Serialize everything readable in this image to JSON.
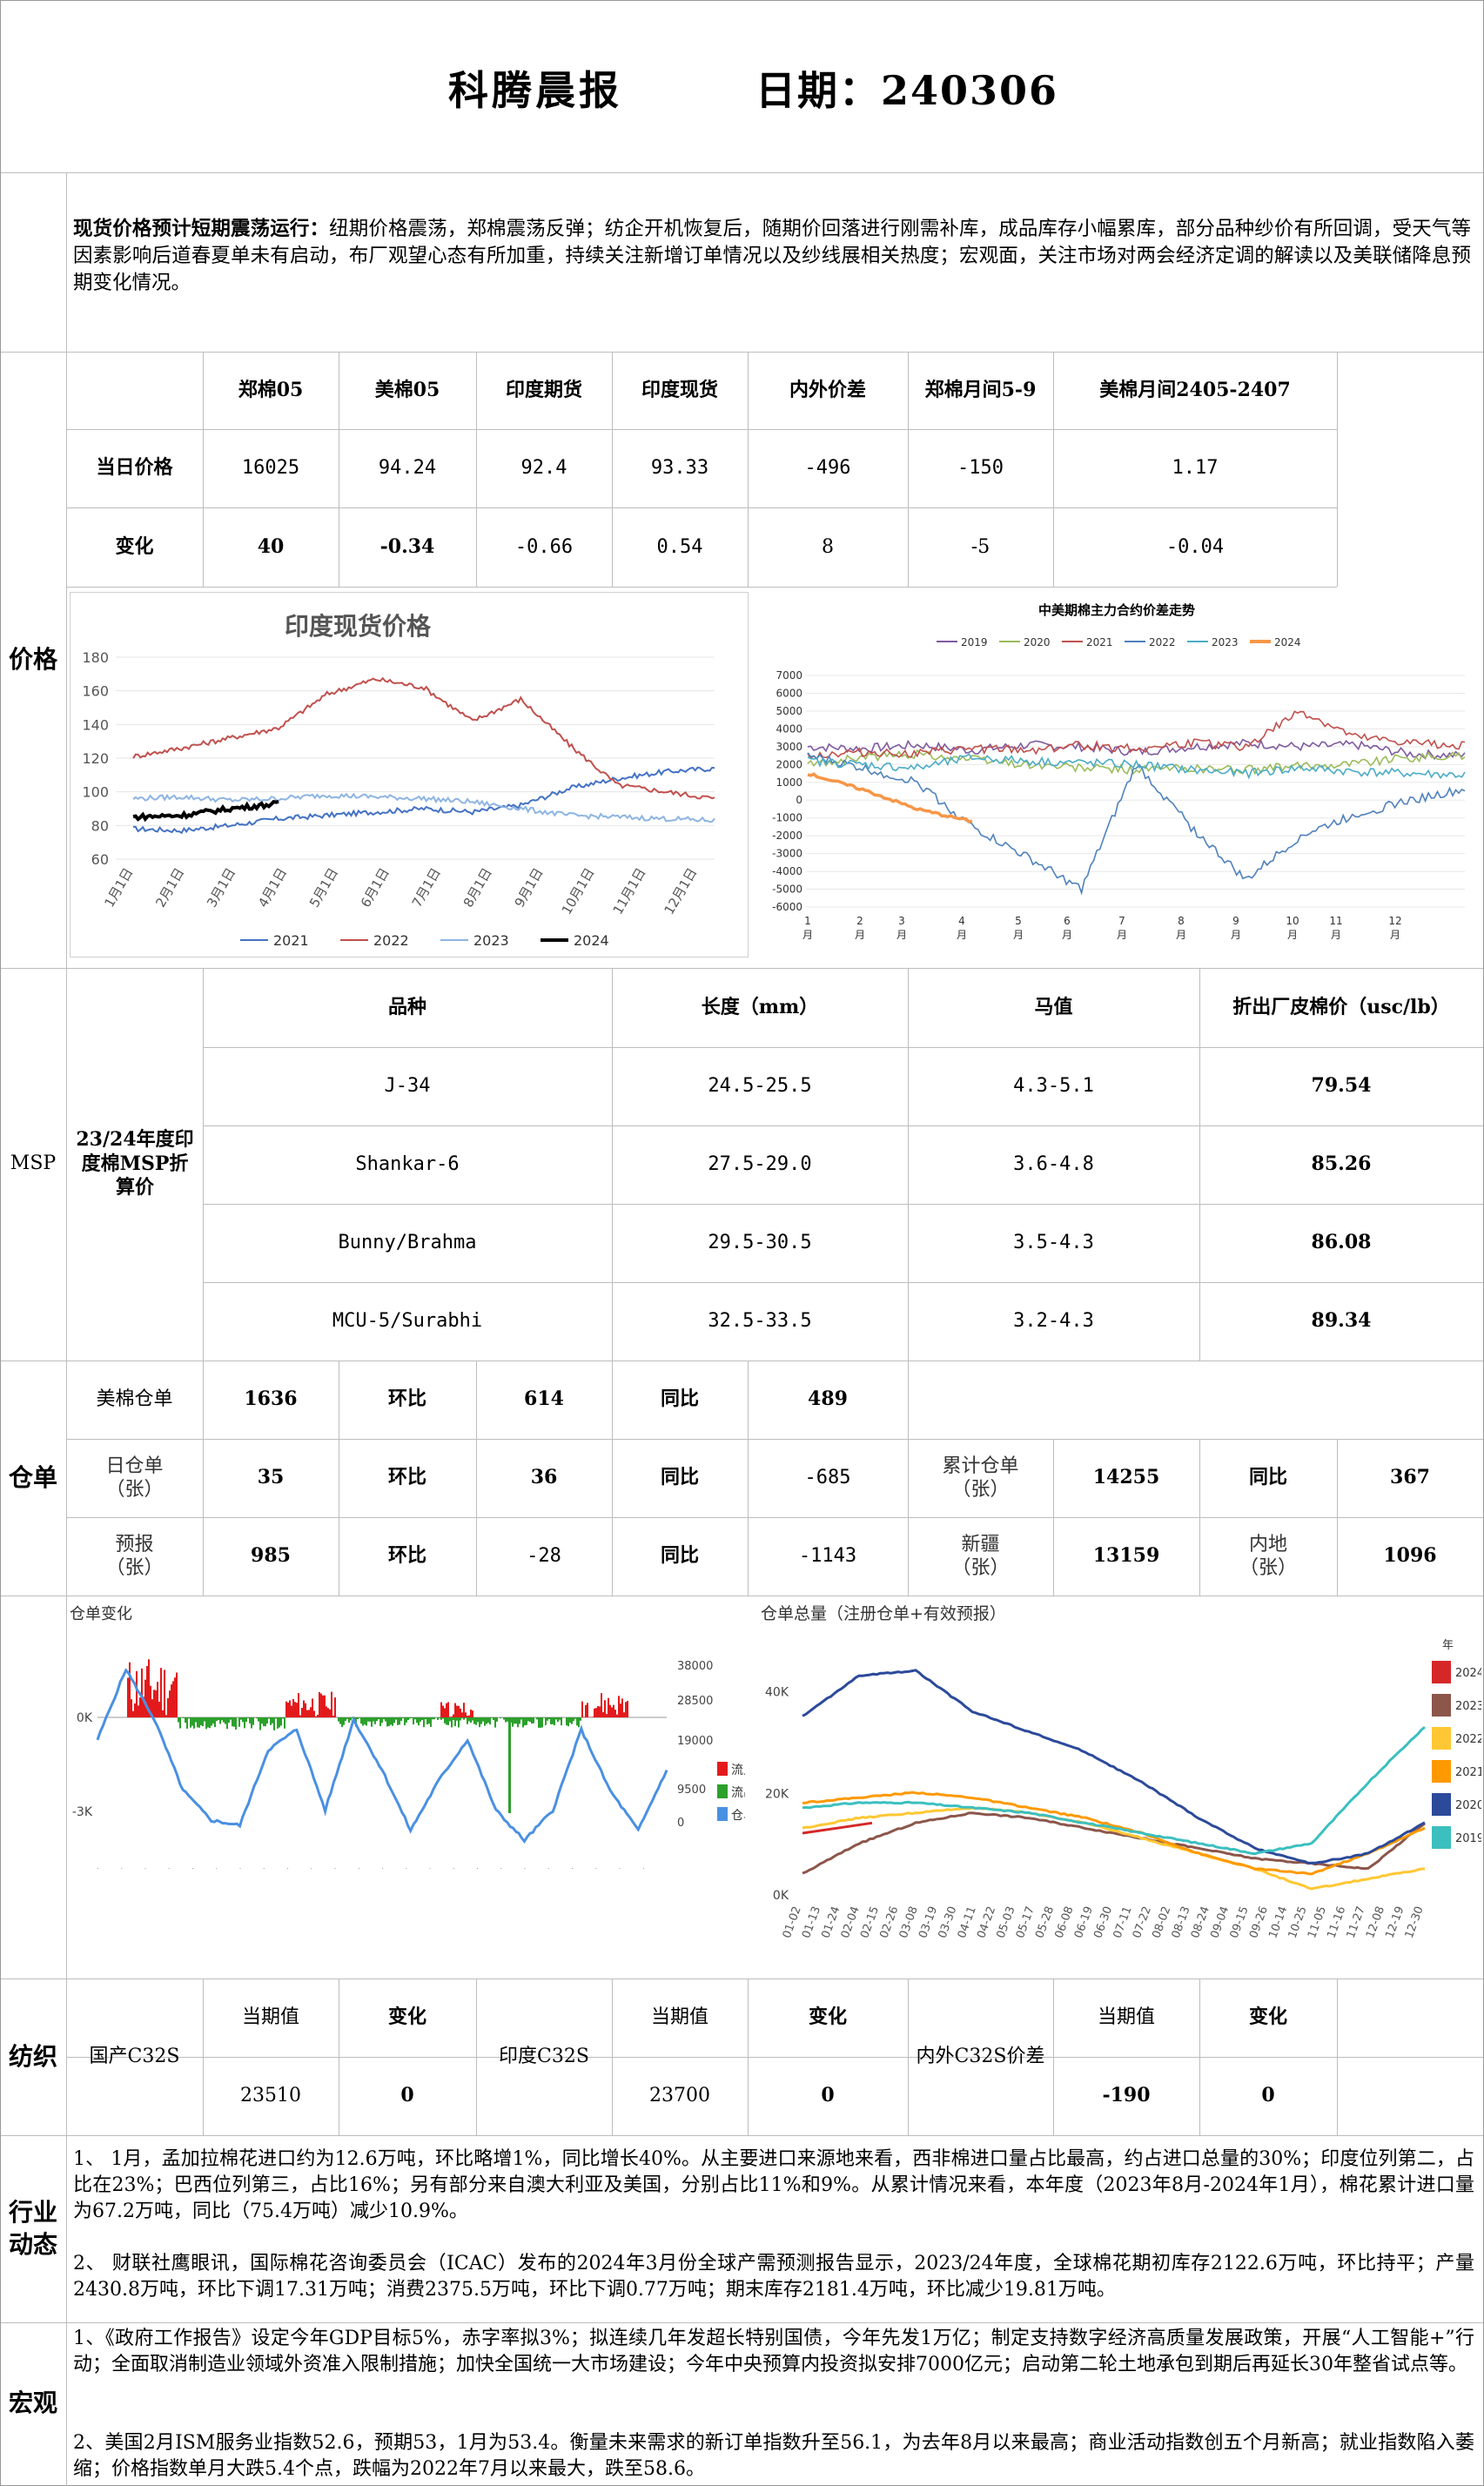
{
  "header": {
    "title": "科腾晨报",
    "date_label": "日期：240306"
  },
  "summary": {
    "lead": "现货价格预计短期震荡运行：",
    "body": "纽期价格震荡，郑棉震荡反弹；纺企开机恢复后，随期价回落进行刚需补库，成品库存小幅累库，部分品种纱价有所回调，受天气等因素影响后道春夏单未有启动，布厂观望心态有所加重，持续关注新增订单情况以及纱线展相关热度；宏观面，关注市场对两会经济定调的解读以及美联储降息预期变化情况。"
  },
  "price": {
    "section": "价格",
    "headers": [
      "郑棉05",
      "美棉05",
      "印度期货",
      "印度现货",
      "内外价差",
      "郑棉月间5-9",
      "美棉月间2405-2407"
    ],
    "row1_label": "当日价格",
    "row1": [
      "16025",
      "94.24",
      "92.4",
      "93.33",
      "-496",
      "-150",
      "1.17"
    ],
    "row2_label": "变化",
    "row2": [
      "40",
      "-0.34",
      "-0.66",
      "0.54",
      "8",
      "-5",
      "-0.04"
    ]
  },
  "india_chart": {
    "chart_data": {
      "type": "line",
      "title": "印度现货价格",
      "x_ticks": [
        "1月1日",
        "2月1日",
        "3月1日",
        "4月1日",
        "5月1日",
        "6月1日",
        "7月1日",
        "8月1日",
        "9月1日",
        "10月1日",
        "11月1日",
        "12月1日"
      ],
      "ylim": [
        60,
        180
      ],
      "y_ticks": [
        "60",
        "80",
        "100",
        "120",
        "140",
        "160",
        "180"
      ],
      "legend_position": "bottom",
      "series": [
        {
          "name": "2021",
          "color": "#4472c4",
          "values": [
            78,
            77,
            80,
            84,
            86,
            88,
            90,
            88,
            92,
            102,
            108,
            112,
            114
          ]
        },
        {
          "name": "2022",
          "color": "#c0504d",
          "values": [
            121,
            126,
            132,
            138,
            158,
            167,
            162,
            142,
            155,
            128,
            104,
            100,
            96
          ]
        },
        {
          "name": "2023",
          "color": "#8db4e2",
          "values": [
            96,
            97,
            95,
            96,
            98,
            97,
            96,
            94,
            90,
            86,
            85,
            84,
            83
          ]
        },
        {
          "name": "2024",
          "color": "#000000",
          "values": [
            85,
            86,
            90,
            93
          ]
        }
      ]
    }
  },
  "spread_chart": {
    "chart_data": {
      "type": "line",
      "title": "中美期棉主力合约价差走势",
      "x_ticks": [
        "1\n月",
        "2\n月",
        "3\n月",
        "4\n月",
        "5\n月",
        "6\n月",
        "7\n月",
        "8\n月",
        "9\n月",
        "10\n月",
        "11\n月",
        "12\n月"
      ],
      "ylim": [
        -6000,
        7000
      ],
      "y_ticks": [
        "7000",
        "6000",
        "5000",
        "4000",
        "3000",
        "2000",
        "1000",
        "0",
        "-1000",
        "-2000",
        "-3000",
        "-4000",
        "-5000",
        "-6000"
      ],
      "legend_position": "top",
      "series": [
        {
          "name": "2019",
          "color": "#7f5aa0",
          "values": [
            3000,
            2900,
            3100,
            2800,
            3100,
            3000,
            2700,
            3000,
            3200,
            3000,
            3100,
            2600,
            2500
          ]
        },
        {
          "name": "2020",
          "color": "#9bbb59",
          "values": [
            2000,
            2400,
            2600,
            2300,
            2000,
            1800,
            1700,
            1800,
            1700,
            1900,
            2100,
            2400,
            2500
          ]
        },
        {
          "name": "2021",
          "color": "#c0504d",
          "values": [
            2500,
            2700,
            2600,
            2900,
            2800,
            3100,
            2900,
            3200,
            3000,
            5000,
            3500,
            3200,
            3100
          ]
        },
        {
          "name": "2022",
          "color": "#4f81bd",
          "values": [
            2500,
            1800,
            1000,
            -1500,
            -3200,
            -5000,
            2000,
            -1500,
            -4500,
            -2000,
            -800,
            0,
            600
          ]
        },
        {
          "name": "2023",
          "color": "#4bacc6",
          "values": [
            2200,
            2000,
            1800,
            2400,
            2200,
            2100,
            2000,
            1700,
            1500,
            1800,
            1600,
            1500,
            1400
          ]
        },
        {
          "name": "2024",
          "color": "#f79646",
          "values": [
            1500,
            600,
            -500,
            -1200
          ]
        }
      ]
    }
  },
  "msp": {
    "section": "MSP",
    "title": "23/24年度印度棉MSP折算价",
    "headers": [
      "品种",
      "长度（mm）",
      "马值",
      "折出厂皮棉价（usc/lb）"
    ],
    "rows": [
      [
        "J-34",
        "24.5-25.5",
        "4.3-5.1",
        "79.54"
      ],
      [
        "Shankar-6",
        "27.5-29.0",
        "3.6-4.8",
        "85.26"
      ],
      [
        "Bunny/Brahma",
        "29.5-30.5",
        "3.5-4.3",
        "86.08"
      ],
      [
        "MCU-5/Surabhi",
        "32.5-33.5",
        "3.2-4.3",
        "89.34"
      ]
    ]
  },
  "warehouse": {
    "section": "仓单",
    "us_label": "美棉仓单",
    "us_value": "1636",
    "us_hb_label": "环比",
    "us_hb": "614",
    "us_tb_label": "同比",
    "us_tb": "489",
    "day_label": "日仓单\n（张）",
    "day_value": "35",
    "day_hb_label": "环比",
    "day_hb": "36",
    "day_tb_label": "同比",
    "day_tb": "-685",
    "cum_label": "累计仓单\n（张）",
    "cum_value": "14255",
    "cum_tb_label": "同比",
    "cum_tb": "367",
    "fc_label": "预报\n（张）",
    "fc_value": "985",
    "fc_hb_label": "环比",
    "fc_hb": "-28",
    "fc_tb_label": "同比",
    "fc_tb": "-1143",
    "xj_label": "新疆\n（张）",
    "xj_value": "13159",
    "nd_label": "内地\n（张）",
    "nd_value": "1096"
  },
  "wr_change_chart": {
    "chart_data": {
      "type": "bar",
      "title": "仓单变化",
      "y_left_ticks": [
        "0K",
        "-3K"
      ],
      "y_right_ticks": [
        "38000",
        "28500",
        "19000",
        "9500",
        "0"
      ],
      "legend": [
        {
          "name": "流入",
          "color": "#e31a1c"
        },
        {
          "name": "流出",
          "color": "#2ca02c"
        },
        {
          "name": "仓单",
          "color": "#4a90e2"
        }
      ],
      "stock_line": [
        22000,
        36000,
        26000,
        12000,
        6000,
        5000,
        20000,
        24000,
        8000,
        26000,
        16000,
        4000,
        14000,
        22000,
        8000,
        2000,
        8000,
        24000,
        12000,
        4000,
        16000
      ]
    }
  },
  "wr_total_chart": {
    "chart_data": {
      "type": "line",
      "title": "仓单总量（注册仓单+有效预报）",
      "y_ticks": [
        "40K",
        "20K",
        "0K"
      ],
      "x_ticks": [
        "01-02",
        "01-13",
        "01-24",
        "02-04",
        "02-15",
        "02-26",
        "03-08",
        "03-19",
        "03-30",
        "04-11",
        "04-22",
        "05-03",
        "05-17",
        "05-28",
        "06-08",
        "06-19",
        "06-30",
        "07-11",
        "07-22",
        "08-02",
        "08-13",
        "08-24",
        "09-04",
        "09-15",
        "09-26",
        "10-14",
        "10-25",
        "11-05",
        "11-16",
        "11-27",
        "12-08",
        "12-19",
        "12-30"
      ],
      "legend_title": "年",
      "series": [
        {
          "name": "2024",
          "color": "#d62728",
          "values": [
            12000,
            13000,
            14000
          ]
        },
        {
          "name": "2023",
          "color": "#8c564b",
          "values": [
            4000,
            10000,
            14000,
            16000,
            15000,
            13000,
            11000,
            9000,
            7000,
            6000,
            5000,
            14000
          ]
        },
        {
          "name": "2022",
          "color": "#ffc733",
          "values": [
            13000,
            15000,
            16000,
            17000,
            16000,
            14000,
            11000,
            8000,
            5000,
            1000,
            3000,
            5000
          ]
        },
        {
          "name": "2021",
          "color": "#ff9900",
          "values": [
            18000,
            19000,
            20000,
            19000,
            17000,
            15000,
            12000,
            8000,
            5000,
            4000,
            8000,
            13000
          ]
        },
        {
          "name": "2020",
          "color": "#2c4a9a",
          "values": [
            35000,
            43000,
            44000,
            36000,
            32000,
            28000,
            22000,
            15000,
            9000,
            6000,
            8000,
            14000
          ]
        },
        {
          "name": "2019",
          "color": "#3cbfbf",
          "values": [
            17000,
            18000,
            18000,
            17000,
            16000,
            14000,
            12000,
            10000,
            8000,
            10000,
            22000,
            33000
          ]
        }
      ]
    }
  },
  "textile": {
    "section": "纺织",
    "g1_label": "国产C32S",
    "g1_cur_label": "当期值",
    "g1_chg_label": "变化",
    "g1_cur": "23510",
    "g1_chg": "0",
    "g2_label": "印度C32S",
    "g2_cur_label": "当期值",
    "g2_chg_label": "变化",
    "g2_cur": "23700",
    "g2_chg": "0",
    "g3_label": "内外C32S价差",
    "g3_cur_label": "当期值",
    "g3_chg_label": "变化",
    "g3_cur": "-190",
    "g3_chg": "0"
  },
  "industry": {
    "section": "行业\n动态",
    "p1": "1、 1月，孟加拉棉花进口约为12.6万吨，环比略增1%，同比增长40%。从主要进口来源地来看，西非棉进口量占比最高，约占进口总量的30%；印度位列第二，占比在23%；巴西位列第三，占比16%；另有部分来自澳大利亚及美国，分别占比11%和9%。从累计情况来看，本年度（2023年8月-2024年1月），棉花累计进口量为67.2万吨，同比（75.4万吨）减少10.9%。",
    "p2": "2、 财联社鹰眼讯，国际棉花咨询委员会（ICAC）发布的2024年3月份全球产需预测报告显示，2023/24年度，全球棉花期初库存2122.6万吨，环比持平；产量2430.8万吨，环比下调17.31万吨；消费2375.5万吨，环比下调0.77万吨；期末库存2181.4万吨，环比减少19.81万吨。"
  },
  "macro": {
    "section": "宏观",
    "p1": "1、《政府工作报告》设定今年GDP目标5%，赤字率拟3%；拟连续几年发超长特别国债，今年先发1万亿；制定支持数字经济高质量发展政策，开展“人工智能+”行动；全面取消制造业领域外资准入限制措施；加快全国统一大市场建设；今年中央预算内投资拟安排7000亿元；启动第二轮土地承包到期后再延长30年整省试点等。",
    "p2": "2、美国2月ISM服务业指数52.6，预期53，1月为53.4。衡量未来需求的新订单指数升至56.1，为去年8月以来最高；商业活动指数创五个月新高；就业指数陷入萎缩；价格指数单月大跌5.4个点，跌幅为2022年7月以来最大，跌至58.6。"
  }
}
